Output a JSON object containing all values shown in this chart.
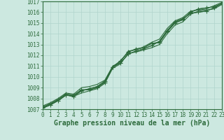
{
  "xlabel": "Graphe pression niveau de la mer (hPa)",
  "ylim": [
    1007,
    1017
  ],
  "xlim": [
    0,
    23
  ],
  "yticks": [
    1007,
    1008,
    1009,
    1010,
    1011,
    1012,
    1013,
    1014,
    1015,
    1016,
    1017
  ],
  "xticks": [
    0,
    1,
    2,
    3,
    4,
    5,
    6,
    7,
    8,
    9,
    10,
    11,
    12,
    13,
    14,
    15,
    16,
    17,
    18,
    19,
    20,
    21,
    22,
    23
  ],
  "bg_color": "#cce8e0",
  "grid_color": "#b0d4cc",
  "line_color": "#2d6b3c",
  "series": [
    [
      1007.2,
      1007.5,
      1007.9,
      1008.4,
      1008.3,
      1008.8,
      1008.8,
      1009.0,
      1009.5,
      1010.9,
      1011.5,
      1012.3,
      1012.6,
      1012.7,
      1013.1,
      1013.2,
      1014.2,
      1015.0,
      1015.3,
      1016.0,
      1016.3,
      1016.4,
      1016.5,
      1016.8
    ],
    [
      1007.1,
      1007.4,
      1007.8,
      1008.3,
      1008.2,
      1008.5,
      1008.7,
      1008.9,
      1009.4,
      1010.8,
      1011.2,
      1012.2,
      1012.3,
      1012.5,
      1012.7,
      1013.0,
      1014.0,
      1014.8,
      1015.1,
      1015.8,
      1016.1,
      1016.2,
      1016.3,
      1016.7
    ],
    [
      1007.3,
      1007.6,
      1008.0,
      1008.5,
      1008.4,
      1009.0,
      1009.1,
      1009.3,
      1009.7,
      1011.0,
      1011.4,
      1012.4,
      1012.5,
      1012.8,
      1013.2,
      1013.5,
      1014.5,
      1015.2,
      1015.5,
      1016.1,
      1016.2,
      1016.3,
      1016.6,
      1016.9
    ],
    [
      1007.1,
      1007.4,
      1007.8,
      1008.3,
      1008.2,
      1008.7,
      1008.9,
      1009.1,
      1009.6,
      1010.9,
      1011.3,
      1012.1,
      1012.4,
      1012.6,
      1012.9,
      1013.3,
      1014.3,
      1015.1,
      1015.4,
      1015.9,
      1016.0,
      1016.1,
      1016.4,
      1016.8
    ]
  ],
  "marker": "+",
  "marker_size": 4.0,
  "linewidth": 0.8,
  "font_color": "#2d6b3c",
  "tick_fontsize": 5.5,
  "xlabel_fontsize": 7.0,
  "figsize": [
    3.2,
    2.0
  ],
  "dpi": 100
}
